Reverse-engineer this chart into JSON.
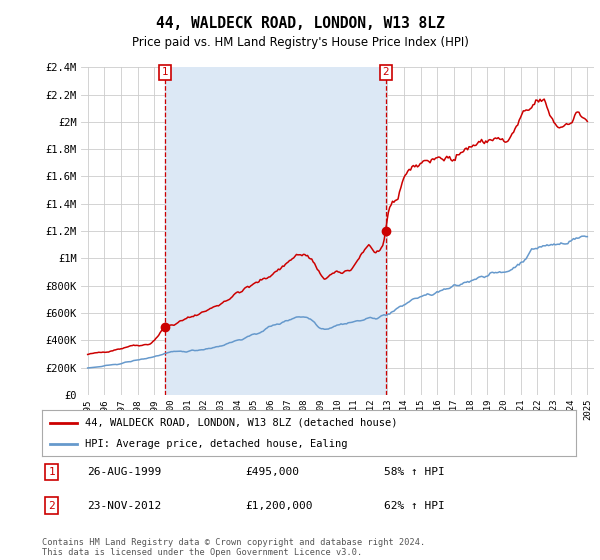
{
  "title": "44, WALDECK ROAD, LONDON, W13 8LZ",
  "subtitle": "Price paid vs. HM Land Registry's House Price Index (HPI)",
  "title_fontsize": 10.5,
  "subtitle_fontsize": 8.5,
  "ylim": [
    0,
    2400000
  ],
  "yticks": [
    0,
    200000,
    400000,
    600000,
    800000,
    1000000,
    1200000,
    1400000,
    1600000,
    1800000,
    2000000,
    2200000,
    2400000
  ],
  "ytick_labels": [
    "£0",
    "£200K",
    "£400K",
    "£600K",
    "£800K",
    "£1M",
    "£1.2M",
    "£1.4M",
    "£1.6M",
    "£1.8M",
    "£2M",
    "£2.2M",
    "£2.4M"
  ],
  "red_line_color": "#cc0000",
  "blue_line_color": "#6699cc",
  "shade_color": "#dce8f5",
  "marker_color": "#cc0000",
  "annotation_box_color": "#cc0000",
  "grid_color": "#cccccc",
  "background_color": "#ffffff",
  "legend_label_red": "44, WALDECK ROAD, LONDON, W13 8LZ (detached house)",
  "legend_label_blue": "HPI: Average price, detached house, Ealing",
  "annotation1_date": "26-AUG-1999",
  "annotation1_price": "£495,000",
  "annotation1_hpi": "58% ↑ HPI",
  "annotation2_date": "23-NOV-2012",
  "annotation2_price": "£1,200,000",
  "annotation2_hpi": "62% ↑ HPI",
  "footer": "Contains HM Land Registry data © Crown copyright and database right 2024.\nThis data is licensed under the Open Government Licence v3.0.",
  "sale1_x": 1999.646,
  "sale1_y": 495000,
  "sale2_x": 2012.896,
  "sale2_y": 1200000,
  "xtick_years": [
    1995,
    1996,
    1997,
    1998,
    1999,
    2000,
    2001,
    2002,
    2003,
    2004,
    2005,
    2006,
    2007,
    2008,
    2009,
    2010,
    2011,
    2012,
    2013,
    2014,
    2015,
    2016,
    2017,
    2018,
    2019,
    2020,
    2021,
    2022,
    2023,
    2024,
    2025
  ],
  "xlim_left": 1994.6,
  "xlim_right": 2025.4
}
